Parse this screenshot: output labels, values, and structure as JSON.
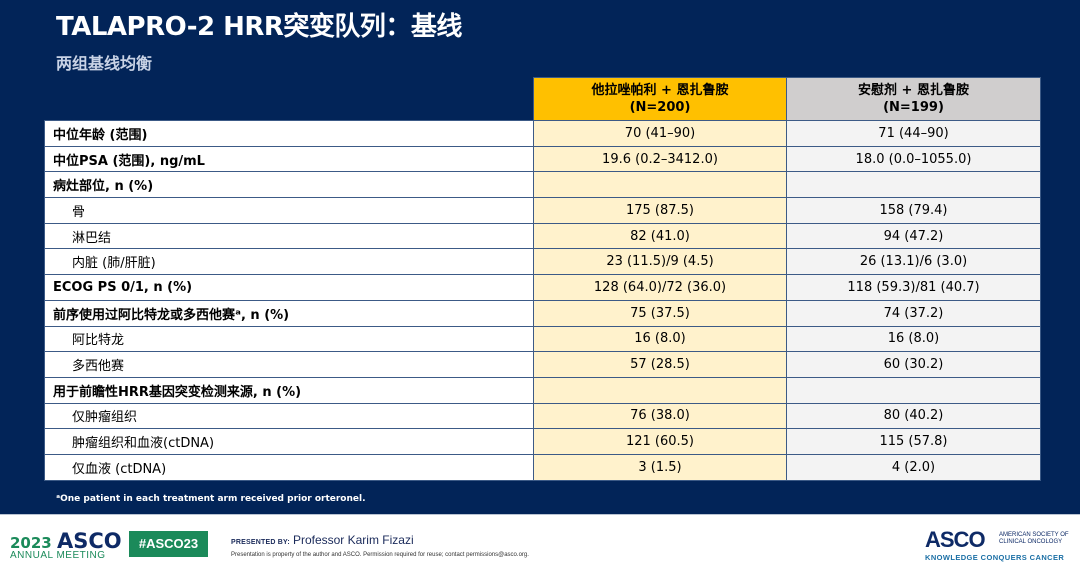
{
  "slide": {
    "title": "TALAPRO-2 HRR突变队列：基线",
    "subtitle": "两组基线均衡",
    "table": {
      "columns": [
        {
          "label": "",
          "n": ""
        },
        {
          "label": "他拉唑帕利 + 恩扎鲁胺",
          "n": "(N=200)",
          "color": "#ffc000"
        },
        {
          "label": "安慰剂 + 恩扎鲁胺",
          "n": "(N=199)",
          "color": "#d0cece"
        }
      ],
      "rows": [
        {
          "label": "中位年龄 (范围)",
          "bold": true,
          "arm1": "70 (41–90)",
          "arm2": "71 (44–90)"
        },
        {
          "label": "中位PSA (范围), ng/mL",
          "bold": true,
          "arm1": "19.6 (0.2–3412.0)",
          "arm2": "18.0 (0.0–1055.0)"
        },
        {
          "label": "病灶部位, n (%)",
          "bold": true,
          "arm1": "",
          "arm2": ""
        },
        {
          "label": "骨",
          "bold": false,
          "arm1": "175 (87.5)",
          "arm2": "158 (79.4)"
        },
        {
          "label": "淋巴结",
          "bold": false,
          "arm1": "82 (41.0)",
          "arm2": "94 (47.2)"
        },
        {
          "label": "内脏 (肺/肝脏)",
          "bold": false,
          "arm1": "23 (11.5)/9 (4.5)",
          "arm2": "26 (13.1)/6 (3.0)"
        },
        {
          "label": "ECOG PS 0/1, n (%)",
          "bold": true,
          "arm1": "128 (64.0)/72 (36.0)",
          "arm2": "118 (59.3)/81 (40.7)"
        },
        {
          "label": "前序使用过阿比特龙或多西他赛ᵃ, n (%)",
          "bold": true,
          "arm1": "75 (37.5)",
          "arm2": "74 (37.2)"
        },
        {
          "label": "阿比特龙",
          "bold": false,
          "arm1": "16 (8.0)",
          "arm2": "16 (8.0)"
        },
        {
          "label": "多西他赛",
          "bold": false,
          "arm1": "57 (28.5)",
          "arm2": "60 (30.2)"
        },
        {
          "label": "用于前瞻性HRR基因突变检测来源, n (%)",
          "bold": true,
          "arm1": "",
          "arm2": ""
        },
        {
          "label": "仅肿瘤组织",
          "bold": false,
          "arm1": "76 (38.0)",
          "arm2": "80 (40.2)"
        },
        {
          "label": "肿瘤组织和血液(ctDNA)",
          "bold": false,
          "arm1": "121 (60.5)",
          "arm2": "115 (57.8)"
        },
        {
          "label": "仅血液 (ctDNA)",
          "bold": false,
          "arm1": "3 (1.5)",
          "arm2": "4 (2.0)"
        }
      ]
    },
    "footnote": "ᵃOne patient in each treatment arm received prior orteronel."
  },
  "footer": {
    "year": "2023",
    "asco": "ASCO",
    "meeting": "ANNUAL MEETING",
    "hashtag": "#ASCO23",
    "presented_by_label": "PRESENTED BY:",
    "presenter": "Professor Karim Fizazi",
    "property_notice": "Presentation is property of the author and ASCO. Permission required for reuse; contact permissions@asco.org.",
    "logo_text": "ASCO",
    "society_line1": "AMERICAN SOCIETY OF",
    "society_line2": "CLINICAL ONCOLOGY",
    "tagline": "KNOWLEDGE CONQUERS CANCER"
  },
  "colors": {
    "background": "#022458",
    "arm1_header": "#ffc000",
    "arm1_cells": "#fff2cc",
    "arm2_header": "#d0cece",
    "arm2_cells": "#f3f3f3",
    "asco_green": "#1b8a5a"
  }
}
